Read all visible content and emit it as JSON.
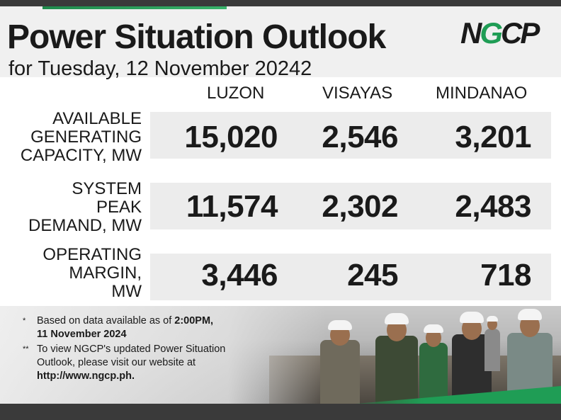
{
  "header": {
    "title": "Power Situation Outlook",
    "subtitle": "for Tuesday, 12 November 20242",
    "logo_text_n": "N",
    "logo_text_g": "G",
    "logo_text_cp": "CP"
  },
  "columns": [
    "LUZON",
    "VISAYAS",
    "MINDANAO"
  ],
  "rows": [
    {
      "label_lines": [
        "AVAILABLE",
        "GENERATING",
        "CAPACITY, MW"
      ],
      "values": [
        "15,020",
        "2,546",
        "3,201"
      ]
    },
    {
      "label_lines": [
        "SYSTEM",
        "PEAK",
        "DEMAND, MW"
      ],
      "values": [
        "11,574",
        "2,302",
        "2,483"
      ]
    },
    {
      "label_lines": [
        "OPERATING",
        "MARGIN,",
        "MW"
      ],
      "values": [
        "3,446",
        "245",
        "718"
      ]
    }
  ],
  "notes": [
    {
      "mark": "*",
      "text": "Based on data available as of ",
      "bold": "2:00PM,",
      "line2_bold": "11 November 2024"
    },
    {
      "mark": "**",
      "text": "To view NGCP's updated Power Situation Outlook, please visit our website at",
      "bold": "http://www.ngcp.ph."
    }
  ],
  "colors": {
    "accent_green": "#1f9d55",
    "dark_bar": "#3a3a3a",
    "band": "#ececec"
  }
}
